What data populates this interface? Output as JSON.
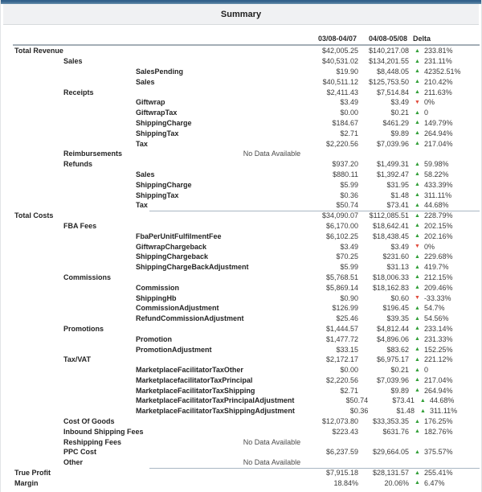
{
  "header": {
    "title": "Summary"
  },
  "colors": {
    "up_arrow": "#2f9e35",
    "down_arrow": "#e14b3c",
    "top_bar": "#2f5d88"
  },
  "table": {
    "columns": [
      "03/08-04/07",
      "04/08-05/08",
      "Delta"
    ],
    "no_data_label": "No Data Available",
    "rows": [
      {
        "label": "Total Revenue",
        "level": 0,
        "v1": "$42,005.25",
        "v2": "$140,217.08",
        "dir": "up",
        "delta": "233.81%"
      },
      {
        "label": "Sales",
        "level": 1,
        "v1": "$40,531.02",
        "v2": "$134,201.55",
        "dir": "up",
        "delta": "231.11%"
      },
      {
        "label": "SalesPending",
        "level": 2,
        "v1": "$19.90",
        "v2": "$8,448.05",
        "dir": "up",
        "delta": "42352.51%"
      },
      {
        "label": "Sales",
        "level": 2,
        "v1": "$40,511.12",
        "v2": "$125,753.50",
        "dir": "up",
        "delta": "210.42%"
      },
      {
        "label": "Receipts",
        "level": 1,
        "v1": "$2,411.43",
        "v2": "$7,514.84",
        "dir": "up",
        "delta": "211.63%"
      },
      {
        "label": "Giftwrap",
        "level": 2,
        "v1": "$3.49",
        "v2": "$3.49",
        "dir": "down",
        "delta": "0%"
      },
      {
        "label": "GiftwrapTax",
        "level": 2,
        "v1": "$0.00",
        "v2": "$0.21",
        "dir": "up",
        "delta": "0"
      },
      {
        "label": "ShippingCharge",
        "level": 2,
        "v1": "$184.67",
        "v2": "$461.29",
        "dir": "up",
        "delta": "149.79%"
      },
      {
        "label": "ShippingTax",
        "level": 2,
        "v1": "$2.71",
        "v2": "$9.89",
        "dir": "up",
        "delta": "264.94%"
      },
      {
        "label": "Tax",
        "level": 2,
        "v1": "$2,220.56",
        "v2": "$7,039.96",
        "dir": "up",
        "delta": "217.04%"
      },
      {
        "label": "Reimbursements",
        "level": 1,
        "no_data": true
      },
      {
        "label": "Refunds",
        "level": 1,
        "v1": "$937.20",
        "v2": "$1,499.31",
        "dir": "up",
        "delta": "59.98%"
      },
      {
        "label": "Sales",
        "level": 2,
        "v1": "$880.11",
        "v2": "$1,392.47",
        "dir": "up",
        "delta": "58.22%"
      },
      {
        "label": "ShippingCharge",
        "level": 2,
        "v1": "$5.99",
        "v2": "$31.95",
        "dir": "up",
        "delta": "433.39%"
      },
      {
        "label": "ShippingTax",
        "level": 2,
        "v1": "$0.36",
        "v2": "$1.48",
        "dir": "up",
        "delta": "311.11%"
      },
      {
        "label": "Tax",
        "level": 2,
        "v1": "$50.74",
        "v2": "$73.41",
        "dir": "up",
        "delta": "44.68%"
      },
      {
        "label": "Total Costs",
        "level": 0,
        "v1": "$34,090.07",
        "v2": "$112,085.51",
        "dir": "up",
        "delta": "228.79%",
        "sep": true
      },
      {
        "label": "FBA Fees",
        "level": 1,
        "v1": "$6,170.00",
        "v2": "$18,642.41",
        "dir": "up",
        "delta": "202.15%"
      },
      {
        "label": "FbaPerUnitFulfilmentFee",
        "level": 2,
        "v1": "$6,102.25",
        "v2": "$18,438.45",
        "dir": "up",
        "delta": "202.16%"
      },
      {
        "label": "GiftwrapChargeback",
        "level": 2,
        "v1": "$3.49",
        "v2": "$3.49",
        "dir": "down",
        "delta": "0%"
      },
      {
        "label": "ShippingChargeback",
        "level": 2,
        "v1": "$70.25",
        "v2": "$231.60",
        "dir": "up",
        "delta": "229.68%"
      },
      {
        "label": "ShippingChargeBackAdjustment",
        "level": 2,
        "v1": "$5.99",
        "v2": "$31.13",
        "dir": "up",
        "delta": "419.7%"
      },
      {
        "label": "Commissions",
        "level": 1,
        "v1": "$5,768.51",
        "v2": "$18,006.33",
        "dir": "up",
        "delta": "212.15%"
      },
      {
        "label": "Commission",
        "level": 2,
        "v1": "$5,869.14",
        "v2": "$18,162.83",
        "dir": "up",
        "delta": "209.46%"
      },
      {
        "label": "ShippingHb",
        "level": 2,
        "v1": "$0.90",
        "v2": "$0.60",
        "dir": "down",
        "delta": "-33.33%"
      },
      {
        "label": "CommissionAdjustment",
        "level": 2,
        "v1": "$126.99",
        "v2": "$196.45",
        "dir": "up",
        "delta": "54.7%"
      },
      {
        "label": "RefundCommissionAdjustment",
        "level": 2,
        "v1": "$25.46",
        "v2": "$39.35",
        "dir": "up",
        "delta": "54.56%"
      },
      {
        "label": "Promotions",
        "level": 1,
        "v1": "$1,444.57",
        "v2": "$4,812.44",
        "dir": "up",
        "delta": "233.14%"
      },
      {
        "label": "Promotion",
        "level": 2,
        "v1": "$1,477.72",
        "v2": "$4,896.06",
        "dir": "up",
        "delta": "231.33%"
      },
      {
        "label": "PromotionAdjustment",
        "level": 2,
        "v1": "$33.15",
        "v2": "$83.62",
        "dir": "up",
        "delta": "152.25%"
      },
      {
        "label": "Tax/VAT",
        "level": 1,
        "v1": "$2,172.17",
        "v2": "$6,975.17",
        "dir": "up",
        "delta": "221.12%"
      },
      {
        "label": "MarketplaceFacilitatorTaxOther",
        "level": 2,
        "v1": "$0.00",
        "v2": "$0.21",
        "dir": "up",
        "delta": "0"
      },
      {
        "label": "MarketplacefacilitatorTaxPrincipal",
        "level": 2,
        "v1": "$2,220.56",
        "v2": "$7,039.96",
        "dir": "up",
        "delta": "217.04%"
      },
      {
        "label": "MarketplaceFacilitatorTaxShipping",
        "level": 2,
        "v1": "$2.71",
        "v2": "$9.89",
        "dir": "up",
        "delta": "264.94%"
      },
      {
        "label": "MarketplaceFacilitatorTaxPrincipalAdjustment",
        "level": 2,
        "v1": "$50.74",
        "v2": "$73.41",
        "dir": "up",
        "delta": "44.68%"
      },
      {
        "label": "MarketplaceFacilitatorTaxShippingAdjustment",
        "level": 2,
        "v1": "$0.36",
        "v2": "$1.48",
        "dir": "up",
        "delta": "311.11%"
      },
      {
        "label": "Cost Of Goods",
        "level": 1,
        "v1": "$12,073.80",
        "v2": "$33,353.35",
        "dir": "up",
        "delta": "176.25%"
      },
      {
        "label": "Inbound Shipping Fees",
        "level": 1,
        "v1": "$223.43",
        "v2": "$631.76",
        "dir": "up",
        "delta": "182.76%"
      },
      {
        "label": "Reshipping Fees",
        "level": 1,
        "no_data": true
      },
      {
        "label": "PPC Cost",
        "level": 1,
        "v1": "$6,237.59",
        "v2": "$29,664.05",
        "dir": "up",
        "delta": "375.57%"
      },
      {
        "label": "Other",
        "level": 1,
        "no_data": true
      },
      {
        "label": "True Profit",
        "level": 0,
        "v1": "$7,915.18",
        "v2": "$28,131.57",
        "dir": "up",
        "delta": "255.41%",
        "sep": true
      },
      {
        "label": "Margin",
        "level": 0,
        "v1": "18.84%",
        "v2": "20.06%",
        "dir": "up",
        "delta": "6.47%"
      }
    ]
  }
}
